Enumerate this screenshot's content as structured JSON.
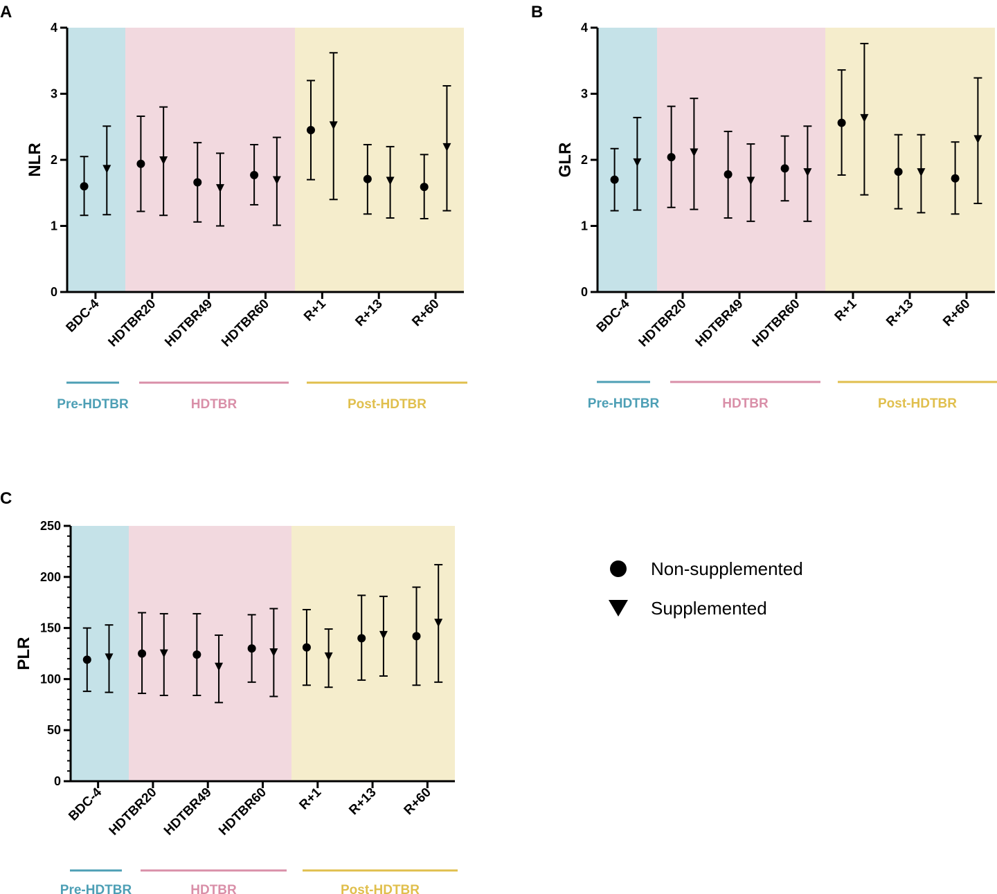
{
  "colors": {
    "pre": "#c5e2e8",
    "hdtbr": "#f2d9df",
    "post": "#f5edcc",
    "pre_line": "#4d9fb5",
    "hdtbr_line": "#d98fa8",
    "post_line": "#e0bf4d",
    "marker": "#000000"
  },
  "legend": {
    "items": [
      {
        "marker": "circle",
        "label": "Non-supplemented"
      },
      {
        "marker": "triangle-down",
        "label": "Supplemented"
      }
    ]
  },
  "chart_data": [
    {
      "panel": "A",
      "type": "scatter",
      "ylabel": "NLR",
      "ylim": [
        0,
        4
      ],
      "yticks": [
        "0",
        "1",
        "2",
        "3",
        "4"
      ],
      "categories": [
        "BDC-4",
        "HDTBR20",
        "HDTBR49",
        "HDTBR60",
        "R+1",
        "R+13",
        "R+60"
      ],
      "phases": [
        {
          "name": "Pre-HDTBR",
          "key": "pre"
        },
        {
          "name": "HDTBR",
          "key": "hdtbr"
        },
        {
          "name": "Post-HDTBR",
          "key": "post"
        }
      ],
      "series": [
        {
          "name": "Non-supplemented",
          "marker": "circle",
          "values": [
            1.6,
            1.94,
            1.66,
            1.77,
            2.45,
            1.71,
            1.59
          ],
          "lower": [
            1.16,
            1.22,
            1.06,
            1.32,
            1.7,
            1.18,
            1.11
          ],
          "upper": [
            2.05,
            2.66,
            2.26,
            2.23,
            3.2,
            2.23,
            2.08
          ]
        },
        {
          "name": "Supplemented",
          "marker": "triangle-down",
          "values": [
            1.86,
            1.99,
            1.57,
            1.69,
            2.52,
            1.68,
            2.19
          ],
          "lower": [
            1.17,
            1.16,
            1.0,
            1.01,
            1.4,
            1.12,
            1.23
          ],
          "upper": [
            2.51,
            2.8,
            2.1,
            2.34,
            3.62,
            2.2,
            3.12
          ]
        }
      ]
    },
    {
      "panel": "B",
      "type": "scatter",
      "ylabel": "GLR",
      "ylim": [
        0,
        4
      ],
      "yticks": [
        "0",
        "1",
        "2",
        "3",
        "4"
      ],
      "categories": [
        "BDC-4",
        "HDTBR20",
        "HDTBR49",
        "HDTBR60",
        "R+1",
        "R+13",
        "R+60"
      ],
      "phases": [
        {
          "name": "Pre-HDTBR",
          "key": "pre"
        },
        {
          "name": "HDTBR",
          "key": "hdtbr"
        },
        {
          "name": "Post-HDTBR",
          "key": "post"
        }
      ],
      "series": [
        {
          "name": "Non-supplemented",
          "marker": "circle",
          "values": [
            1.7,
            2.04,
            1.78,
            1.87,
            2.56,
            1.82,
            1.72
          ],
          "lower": [
            1.23,
            1.28,
            1.12,
            1.38,
            1.77,
            1.26,
            1.18
          ],
          "upper": [
            2.17,
            2.81,
            2.43,
            2.36,
            3.36,
            2.38,
            2.27
          ]
        },
        {
          "name": "Supplemented",
          "marker": "triangle-down",
          "values": [
            1.96,
            2.11,
            1.68,
            1.81,
            2.63,
            1.81,
            2.31
          ],
          "lower": [
            1.24,
            1.25,
            1.07,
            1.07,
            1.47,
            1.2,
            1.34
          ],
          "upper": [
            2.64,
            2.93,
            2.24,
            2.51,
            3.76,
            2.38,
            3.24
          ]
        }
      ]
    },
    {
      "panel": "C",
      "type": "scatter",
      "ylabel": "PLR",
      "ylim": [
        0,
        250
      ],
      "yticks": [
        "0",
        "50",
        "100",
        "150",
        "200",
        "250"
      ],
      "categories": [
        "BDC-4",
        "HDTBR20",
        "HDTBR49",
        "HDTBR60",
        "R+1",
        "R+13",
        "R+60"
      ],
      "phases": [
        {
          "name": "Pre-HDTBR",
          "key": "pre"
        },
        {
          "name": "HDTBR",
          "key": "hdtbr"
        },
        {
          "name": "Post-HDTBR",
          "key": "post"
        }
      ],
      "series": [
        {
          "name": "Non-supplemented",
          "marker": "circle",
          "values": [
            119,
            125,
            124,
            130,
            131,
            140,
            142
          ],
          "lower": [
            88,
            86,
            84,
            97,
            94,
            99,
            94
          ],
          "upper": [
            150,
            165,
            164,
            163,
            168,
            182,
            190
          ]
        },
        {
          "name": "Supplemented",
          "marker": "triangle-down",
          "values": [
            121,
            125,
            112,
            126,
            122,
            143,
            155
          ],
          "lower": [
            87,
            84,
            77,
            83,
            92,
            103,
            97
          ],
          "upper": [
            153,
            164,
            143,
            169,
            149,
            181,
            212
          ]
        }
      ]
    }
  ]
}
